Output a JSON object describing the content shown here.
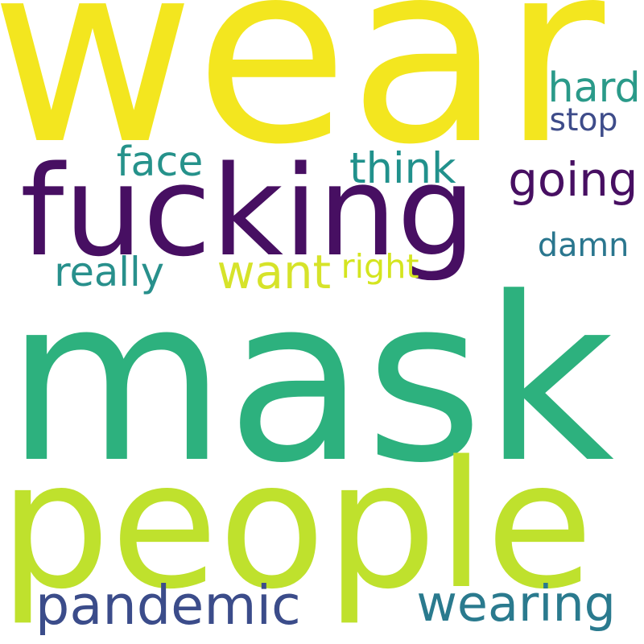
{
  "cloud": {
    "words": [
      {
        "text": "wear",
        "color": "#f3e61f"
      },
      {
        "text": "fucking",
        "color": "#470f62"
      },
      {
        "text": "mask",
        "color": "#2db17e"
      },
      {
        "text": "people",
        "color": "#bfe12d"
      },
      {
        "text": "pandemic",
        "color": "#3b4c8a"
      },
      {
        "text": "wearing",
        "color": "#2a7a8e"
      },
      {
        "text": "going",
        "color": "#470f62"
      },
      {
        "text": "want",
        "color": "#d6e32a"
      },
      {
        "text": "right",
        "color": "#d4e51f"
      },
      {
        "text": "really",
        "color": "#28908c"
      },
      {
        "text": "face",
        "color": "#26928b"
      },
      {
        "text": "think",
        "color": "#21918c"
      },
      {
        "text": "hard",
        "color": "#2a9a89"
      },
      {
        "text": "stop",
        "color": "#3e4c8a"
      },
      {
        "text": "damn",
        "color": "#2a768e"
      }
    ]
  }
}
